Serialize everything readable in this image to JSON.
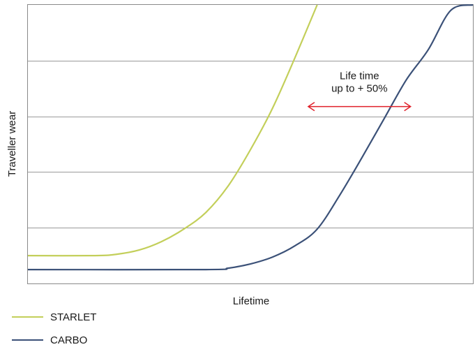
{
  "chart_data": {
    "type": "line",
    "xlabel": "Lifetime",
    "ylabel": "Traveller wear",
    "xlim": [
      0,
      100
    ],
    "ylim": [
      0,
      100
    ],
    "grid": true,
    "legend_position": "bottom-left",
    "series": [
      {
        "name": "STARLET",
        "color": "#c3cf5a",
        "x": [
          0,
          15,
          20,
          25,
          30,
          35,
          40,
          45,
          50,
          55,
          60,
          65
        ],
        "y": [
          10,
          10,
          10.5,
          12,
          15,
          19.5,
          25.5,
          35,
          48,
          63,
          81,
          100
        ]
      },
      {
        "name": "CARBO",
        "color": "#3b5178",
        "x": [
          0,
          40,
          45,
          50,
          55,
          60,
          65,
          70,
          75,
          80,
          85,
          90,
          95,
          100
        ],
        "y": [
          5,
          5,
          5.5,
          7,
          9.5,
          13.5,
          19.5,
          31.5,
          45,
          59,
          73,
          84,
          98,
          100
        ]
      }
    ],
    "annotations": [
      {
        "text_lines": [
          "Life time",
          "up to + 50%"
        ],
        "arrow": {
          "from": {
            "x": 63,
            "y": 63.5
          },
          "to": {
            "x": 86,
            "y": 63.5
          },
          "direction": "both"
        },
        "color": "#e0202a"
      }
    ]
  }
}
